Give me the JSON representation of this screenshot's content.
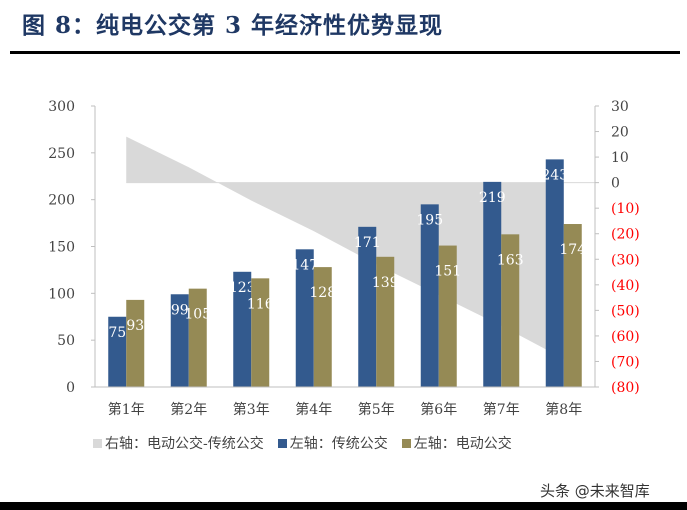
{
  "title": "图 8：纯电公交第 3 年经济性优势显现",
  "watermark": "头条 @未来智库",
  "chart_data": {
    "type": "bar",
    "categories": [
      "第1年",
      "第2年",
      "第3年",
      "第4年",
      "第5年",
      "第6年",
      "第7年",
      "第8年"
    ],
    "series": [
      {
        "name": "右轴：电动公交-传统公交",
        "type": "area",
        "axis": "right",
        "color": "#d9d9d9",
        "values": [
          18,
          6,
          -7,
          -19,
          -32,
          -44,
          -56,
          -69
        ]
      },
      {
        "name": "左轴：传统公交",
        "type": "bar",
        "axis": "left",
        "color": "#335a8e",
        "values": [
          75,
          99,
          123,
          147,
          171,
          195,
          219,
          243
        ]
      },
      {
        "name": "左轴：电动公交",
        "type": "bar",
        "axis": "left",
        "color": "#958a55",
        "values": [
          93,
          105,
          116,
          128,
          139,
          151,
          163,
          174
        ]
      }
    ],
    "left_axis": {
      "ylim": [
        0,
        300
      ],
      "ticks": [
        "0",
        "50",
        "100",
        "150",
        "200",
        "250",
        "300"
      ]
    },
    "right_axis": {
      "ylim": [
        -80,
        30
      ],
      "ticks": [
        "30",
        "20",
        "10",
        "0",
        "(10)",
        "(20)",
        "(30)",
        "(40)",
        "(50)",
        "(60)",
        "(70)",
        "(80)"
      ],
      "negative_color": "#ff0000"
    },
    "legend": "bottom",
    "grid": false
  }
}
